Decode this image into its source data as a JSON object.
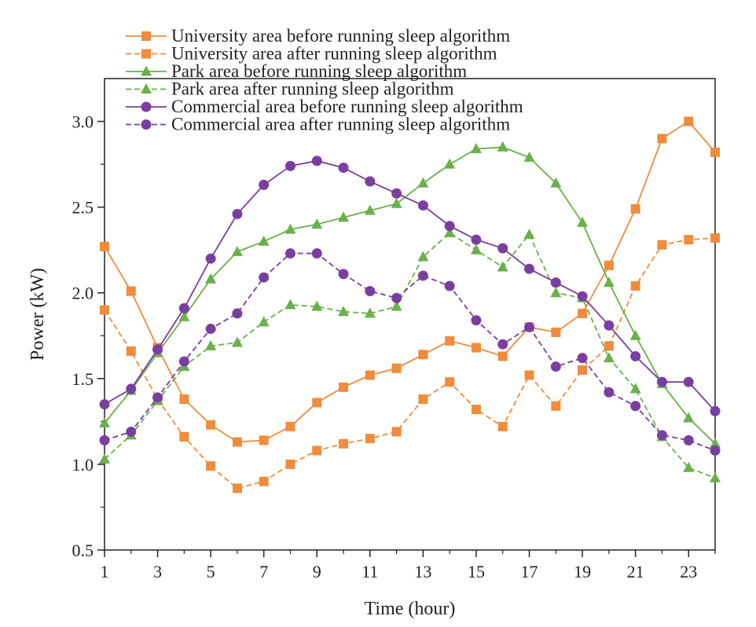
{
  "chart_data": {
    "type": "line",
    "xlabel": "Time (hour)",
    "ylabel": "Power (kW)",
    "xlim": [
      1,
      24
    ],
    "ylim": [
      0.5,
      3.25
    ],
    "x_ticks": [
      1,
      3,
      5,
      7,
      9,
      11,
      13,
      15,
      17,
      19,
      21,
      23
    ],
    "x_tick_labels": [
      "1",
      "3",
      "5",
      "7",
      "9",
      "11",
      "13",
      "15",
      "17",
      "19",
      "21",
      "23"
    ],
    "y_ticks": [
      0.5,
      1.0,
      1.5,
      2.0,
      2.5,
      3.0
    ],
    "y_tick_labels": [
      "0.5",
      "1.0",
      "1.5",
      "2.0",
      "2.5",
      "3.0"
    ],
    "grid": false,
    "legend_position": "top",
    "x": [
      1,
      2,
      3,
      4,
      5,
      6,
      7,
      8,
      9,
      10,
      11,
      12,
      13,
      14,
      15,
      16,
      17,
      18,
      19,
      20,
      21,
      22,
      23,
      24
    ],
    "series": [
      {
        "name": "University area before running sleep algorithm",
        "color": "#f08c3c",
        "marker": "square",
        "dash": false,
        "values": [
          2.27,
          2.01,
          1.68,
          1.38,
          1.23,
          1.13,
          1.14,
          1.22,
          1.36,
          1.45,
          1.52,
          1.56,
          1.64,
          1.72,
          1.68,
          1.63,
          1.8,
          1.77,
          1.88,
          2.16,
          2.49,
          2.9,
          3.0,
          2.82
        ]
      },
      {
        "name": "University area after running sleep algorithm",
        "color": "#f08c3c",
        "marker": "square",
        "dash": true,
        "values": [
          1.9,
          1.66,
          1.38,
          1.16,
          0.99,
          0.86,
          0.9,
          1.0,
          1.08,
          1.12,
          1.15,
          1.19,
          1.38,
          1.48,
          1.32,
          1.22,
          1.52,
          1.34,
          1.55,
          1.69,
          2.04,
          2.28,
          2.31,
          2.32
        ]
      },
      {
        "name": "Park area before running sleep algorithm",
        "color": "#6ab04c",
        "marker": "triangle",
        "dash": false,
        "values": [
          1.24,
          1.43,
          1.65,
          1.86,
          2.08,
          2.24,
          2.3,
          2.37,
          2.4,
          2.44,
          2.48,
          2.52,
          2.64,
          2.75,
          2.84,
          2.85,
          2.79,
          2.64,
          2.41,
          2.06,
          1.75,
          1.47,
          1.27,
          1.12
        ]
      },
      {
        "name": "Park area after running sleep algorithm",
        "color": "#6ab04c",
        "marker": "triangle",
        "dash": true,
        "values": [
          1.03,
          1.17,
          1.37,
          1.57,
          1.69,
          1.71,
          1.83,
          1.93,
          1.92,
          1.89,
          1.88,
          1.92,
          2.21,
          2.35,
          2.25,
          2.15,
          2.34,
          2.0,
          1.97,
          1.62,
          1.44,
          1.16,
          0.98,
          0.92
        ]
      },
      {
        "name": "Commercial area before running sleep algorithm",
        "color": "#7a3ea0",
        "marker": "circle",
        "dash": false,
        "values": [
          1.35,
          1.44,
          1.67,
          1.91,
          2.2,
          2.46,
          2.63,
          2.74,
          2.77,
          2.73,
          2.65,
          2.58,
          2.51,
          2.39,
          2.31,
          2.26,
          2.14,
          2.06,
          1.98,
          1.81,
          1.63,
          1.48,
          1.48,
          1.31
        ]
      },
      {
        "name": "Commercial area after running sleep algorithm",
        "color": "#7a3ea0",
        "marker": "circle",
        "dash": true,
        "values": [
          1.14,
          1.19,
          1.39,
          1.6,
          1.79,
          1.88,
          2.09,
          2.23,
          2.23,
          2.11,
          2.01,
          1.97,
          2.1,
          2.04,
          1.84,
          1.7,
          1.8,
          1.57,
          1.62,
          1.42,
          1.34,
          1.17,
          1.14,
          1.08
        ]
      }
    ]
  }
}
